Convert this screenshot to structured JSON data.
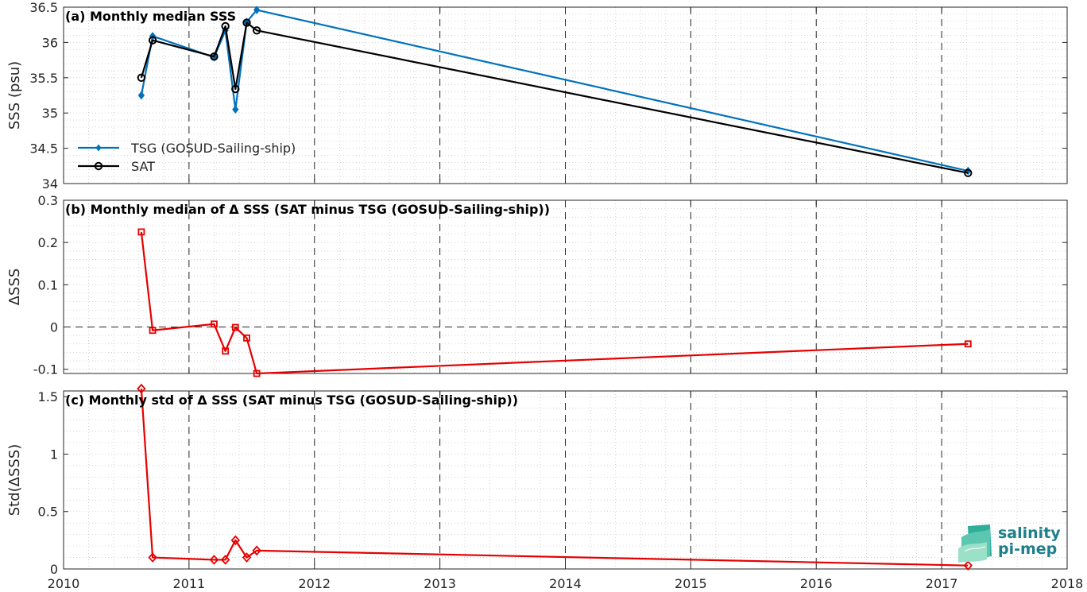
{
  "chart_data": [
    {
      "type": "line",
      "title": "(a) Monthly median SSS",
      "ylabel": "SSS (psu)",
      "ylim": [
        34,
        36.5
      ],
      "yticks": [
        34,
        34.5,
        35,
        35.5,
        36,
        36.5
      ],
      "ytick_labels": [
        "34",
        "34.5",
        "35",
        "35.5",
        "36",
        "36.5"
      ],
      "xlim": [
        2010,
        2018
      ],
      "legend_position": "bottom-left",
      "series": [
        {
          "name": "TSG (GOSUD-Sailing-ship)",
          "color": "#0072bd",
          "marker": "dot",
          "x": [
            2010.62,
            2010.71,
            2011.2,
            2011.29,
            2011.37,
            2011.46,
            2011.54,
            2017.21
          ],
          "y": [
            35.25,
            36.09,
            35.79,
            36.17,
            35.05,
            36.29,
            36.46,
            34.18
          ]
        },
        {
          "name": "SAT",
          "color": "#000000",
          "marker": "circle",
          "x": [
            2010.62,
            2010.71,
            2011.2,
            2011.29,
            2011.37,
            2011.46,
            2011.54,
            2017.21
          ],
          "y": [
            35.5,
            36.03,
            35.8,
            36.23,
            35.34,
            36.28,
            36.17,
            34.15
          ]
        }
      ]
    },
    {
      "type": "line",
      "title": "(b) Monthly median of Δ SSS (SAT minus TSG (GOSUD-Sailing-ship))",
      "ylabel": "ΔSSS",
      "ylim": [
        -0.11,
        0.3
      ],
      "yticks": [
        -0.1,
        0,
        0.1,
        0.2,
        0.3
      ],
      "ytick_labels": [
        "-0.1",
        "0",
        "0.1",
        "0.2",
        "0.3"
      ],
      "xlim": [
        2010,
        2018
      ],
      "zero_line": true,
      "series": [
        {
          "color": "#e60000",
          "marker": "square",
          "x": [
            2010.62,
            2010.71,
            2011.2,
            2011.29,
            2011.37,
            2011.46,
            2011.54,
            2017.21
          ],
          "y": [
            0.225,
            -0.008,
            0.007,
            -0.057,
            -0.001,
            -0.026,
            -0.11,
            -0.04
          ]
        }
      ]
    },
    {
      "type": "line",
      "title": "(c) Monthly std of Δ SSS (SAT minus TSG (GOSUD-Sailing-ship))",
      "ylabel": "Std(ΔSSS)",
      "ylim": [
        0,
        1.55
      ],
      "yticks": [
        0,
        0.5,
        1,
        1.5
      ],
      "ytick_labels": [
        "0",
        "0.5",
        "1",
        "1.5"
      ],
      "xlim": [
        2010,
        2018
      ],
      "xticks": [
        2010,
        2011,
        2012,
        2013,
        2014,
        2015,
        2016,
        2017,
        2018
      ],
      "xtick_labels": [
        "2010",
        "2011",
        "2012",
        "2013",
        "2014",
        "2015",
        "2016",
        "2017",
        "2018"
      ],
      "series": [
        {
          "color": "#e60000",
          "marker": "diamond",
          "x": [
            2010.62,
            2010.71,
            2011.2,
            2011.29,
            2011.37,
            2011.46,
            2011.54,
            2017.21
          ],
          "y": [
            1.57,
            0.1,
            0.08,
            0.08,
            0.25,
            0.1,
            0.16,
            0.03
          ]
        }
      ]
    }
  ],
  "logo": {
    "line1": "salinity",
    "line2": "pi-mep",
    "color": "#1d7f8a"
  }
}
